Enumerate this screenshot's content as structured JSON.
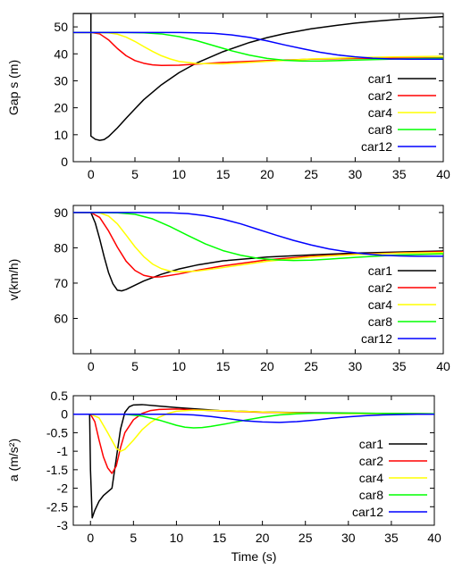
{
  "chart_data": [
    {
      "type": "line",
      "ylabel": "Gap s (m)",
      "xlabel": "",
      "xlim": [
        -2,
        40
      ],
      "ylim": [
        0,
        55
      ],
      "xticks": [
        "0",
        "5",
        "10",
        "15",
        "20",
        "25",
        "30",
        "35",
        "40"
      ],
      "yticks": [
        "0",
        "10",
        "20",
        "30",
        "40",
        "50"
      ],
      "legend_position": "bottom-right",
      "series": [
        {
          "name": "car1",
          "color": "#000000",
          "x": [
            -2,
            0,
            0,
            0.5,
            1,
            1.5,
            2,
            3,
            4,
            5,
            6,
            8,
            10,
            12,
            15,
            18,
            20,
            22,
            25,
            28,
            30,
            32,
            35,
            38,
            40
          ],
          "y": [
            55,
            55,
            9.5,
            8.3,
            7.9,
            8.2,
            9.3,
            12.5,
            16.1,
            19.6,
            23,
            28.5,
            33,
            36.6,
            40.8,
            44.2,
            46,
            47.5,
            49.3,
            50.6,
            51.4,
            52,
            52.8,
            53.4,
            53.8
          ]
        },
        {
          "name": "car2",
          "color": "#ff0000",
          "x": [
            -2,
            0,
            1,
            2,
            3,
            4,
            5,
            6,
            7,
            8,
            10,
            12,
            15,
            20,
            25,
            30,
            35,
            40
          ],
          "y": [
            47.9,
            47.9,
            47.4,
            45.2,
            42,
            39.3,
            37.5,
            36.5,
            35.9,
            35.7,
            35.8,
            36.2,
            36.8,
            37.5,
            38,
            38.3,
            38.4,
            38.5
          ]
        },
        {
          "name": "car4",
          "color": "#ffff00",
          "x": [
            -2,
            0,
            2,
            3,
            4,
            5,
            6,
            7,
            8,
            9,
            10,
            12,
            15,
            20,
            25,
            30,
            35,
            40
          ],
          "y": [
            47.9,
            47.9,
            47.8,
            47.3,
            46.2,
            44.6,
            42.7,
            40.9,
            39.3,
            38.1,
            37.2,
            36.4,
            36.3,
            37.2,
            38.1,
            38.6,
            38.9,
            39.1
          ]
        },
        {
          "name": "car8",
          "color": "#00ff00",
          "x": [
            -2,
            0,
            4,
            6,
            8,
            10,
            12,
            14,
            16,
            18,
            20,
            22,
            24,
            26,
            28,
            30,
            35,
            40
          ],
          "y": [
            47.9,
            47.9,
            47.9,
            47.8,
            47.4,
            46.4,
            44.9,
            43,
            41.1,
            39.5,
            38.3,
            37.6,
            37.3,
            37.3,
            37.5,
            37.7,
            38.1,
            38.4
          ]
        },
        {
          "name": "car12",
          "color": "#0000ff",
          "x": [
            -2,
            0,
            5,
            10,
            12,
            14,
            16,
            18,
            20,
            22,
            24,
            26,
            28,
            30,
            32,
            34,
            36,
            38,
            40
          ],
          "y": [
            47.9,
            47.9,
            47.9,
            47.9,
            47.8,
            47.6,
            47,
            46.1,
            44.8,
            43.3,
            41.9,
            40.6,
            39.6,
            38.9,
            38.4,
            38.1,
            38,
            38,
            38
          ]
        }
      ]
    },
    {
      "type": "line",
      "ylabel": "v(km/h)",
      "xlabel": "",
      "xlim": [
        -2,
        40
      ],
      "ylim": [
        50,
        92
      ],
      "xticks": [
        "0",
        "5",
        "10",
        "15",
        "20",
        "25",
        "30",
        "35",
        "40"
      ],
      "yticks": [
        "60",
        "70",
        "80",
        "90"
      ],
      "legend_position": "bottom-right",
      "series": [
        {
          "name": "car1",
          "color": "#000000",
          "x": [
            -2,
            0,
            0.5,
            1,
            1.5,
            2,
            2.5,
            3,
            3.5,
            4,
            5,
            6,
            8,
            10,
            12,
            15,
            20,
            25,
            30,
            35,
            40
          ],
          "y": [
            90,
            90,
            87,
            82.5,
            77.5,
            73,
            69.8,
            68,
            67.8,
            68.2,
            69.4,
            70.6,
            72.5,
            74,
            75.1,
            76.3,
            77.4,
            78,
            78.5,
            78.8,
            79.1
          ]
        },
        {
          "name": "car2",
          "color": "#ff0000",
          "x": [
            -2,
            0,
            1,
            2,
            3,
            4,
            5,
            6,
            7,
            8,
            10,
            12,
            15,
            20,
            25,
            30,
            35,
            40
          ],
          "y": [
            90,
            90,
            88.6,
            84.8,
            80.2,
            76.2,
            73.6,
            72.2,
            71.7,
            71.8,
            72.6,
            73.6,
            74.9,
            76.6,
            77.6,
            78.2,
            78.6,
            78.9
          ]
        },
        {
          "name": "car4",
          "color": "#ffff00",
          "x": [
            -2,
            0,
            1,
            2,
            3,
            4,
            5,
            6,
            7,
            8,
            9,
            10,
            12,
            15,
            20,
            25,
            30,
            35,
            40
          ],
          "y": [
            90,
            90,
            89.9,
            89,
            86.8,
            83.6,
            80.3,
            77.5,
            75.4,
            74.1,
            73.4,
            73.2,
            73.4,
            74.4,
            76.2,
            77.4,
            78.1,
            78.5,
            78.7
          ]
        },
        {
          "name": "car8",
          "color": "#00ff00",
          "x": [
            -2,
            0,
            3,
            5,
            7,
            9,
            11,
            13,
            15,
            17,
            19,
            21,
            23,
            25,
            27,
            30,
            35,
            40
          ],
          "y": [
            90,
            90,
            89.9,
            89.5,
            88.2,
            86,
            83.5,
            81.1,
            79.2,
            77.9,
            77,
            76.6,
            76.4,
            76.5,
            76.8,
            77.3,
            78,
            78.3
          ]
        },
        {
          "name": "car12",
          "color": "#0000ff",
          "x": [
            -2,
            0,
            5,
            9,
            11,
            13,
            15,
            17,
            19,
            21,
            23,
            25,
            27,
            29,
            31,
            33,
            35,
            37,
            40
          ],
          "y": [
            90,
            90,
            90,
            89.9,
            89.7,
            89.1,
            88.1,
            86.8,
            85.2,
            83.6,
            82.1,
            80.8,
            79.7,
            78.9,
            78.3,
            77.9,
            77.7,
            77.6,
            77.6
          ]
        }
      ]
    },
    {
      "type": "line",
      "ylabel": "a (m/s²)",
      "xlabel": "Time (s)",
      "xlim": [
        -2,
        40
      ],
      "ylim": [
        -3,
        0.5
      ],
      "xticks": [
        "0",
        "5",
        "10",
        "15",
        "20",
        "25",
        "30",
        "35",
        "40"
      ],
      "yticks": [
        "0.5",
        "0",
        "-0.5",
        "-1",
        "-1.5",
        "-2",
        "-2.5",
        "-3"
      ],
      "legend_position": "bottom-right",
      "series": [
        {
          "name": "car1",
          "color": "#000000",
          "x": [
            -2,
            -0.1,
            0,
            0.2,
            0.5,
            1,
            1.5,
            2,
            2.5,
            3,
            3.5,
            4,
            4.5,
            5,
            6,
            8,
            10,
            15,
            20,
            25,
            30,
            40
          ],
          "y": [
            0,
            0,
            -1.5,
            -2.8,
            -2.6,
            -2.35,
            -2.2,
            -2.1,
            -2,
            -1.2,
            -0.4,
            0.05,
            0.2,
            0.25,
            0.26,
            0.22,
            0.18,
            0.1,
            0.06,
            0.04,
            0.03,
            0.01
          ]
        },
        {
          "name": "car2",
          "color": "#ff0000",
          "x": [
            -2,
            0,
            0.5,
            1,
            1.5,
            2,
            2.5,
            3,
            3.5,
            4,
            5,
            6,
            7,
            8,
            10,
            12,
            15,
            20,
            25,
            30,
            40
          ],
          "y": [
            0,
            0,
            -0.2,
            -0.7,
            -1.15,
            -1.45,
            -1.6,
            -1.4,
            -0.9,
            -0.5,
            -0.15,
            0.02,
            0.1,
            0.13,
            0.14,
            0.12,
            0.09,
            0.05,
            0.03,
            0.02,
            0.01
          ]
        },
        {
          "name": "car4",
          "color": "#ffff00",
          "x": [
            -2,
            0,
            1,
            2,
            3,
            3.5,
            4,
            5,
            6,
            7,
            8,
            9,
            10,
            12,
            15,
            20,
            25,
            30,
            40
          ],
          "y": [
            0,
            0,
            -0.1,
            -0.5,
            -0.92,
            -1,
            -0.95,
            -0.7,
            -0.42,
            -0.22,
            -0.08,
            0.02,
            0.08,
            0.11,
            0.1,
            0.06,
            0.03,
            0.02,
            0.01
          ]
        },
        {
          "name": "car8",
          "color": "#00ff00",
          "x": [
            -2,
            0,
            4,
            6,
            8,
            10,
            11,
            12,
            13,
            14,
            16,
            18,
            20,
            22,
            24,
            26,
            28,
            30,
            35,
            40
          ],
          "y": [
            0,
            0,
            0,
            -0.05,
            -0.16,
            -0.3,
            -0.35,
            -0.37,
            -0.36,
            -0.33,
            -0.25,
            -0.16,
            -0.08,
            -0.02,
            0.01,
            0.03,
            0.03,
            0.03,
            0.02,
            0.01
          ]
        },
        {
          "name": "car12",
          "color": "#0000ff",
          "x": [
            -2,
            0,
            8,
            10,
            12,
            14,
            16,
            18,
            20,
            22,
            24,
            26,
            28,
            30,
            32,
            34,
            36,
            38,
            40
          ],
          "y": [
            0,
            0,
            0,
            0,
            -0.02,
            -0.06,
            -0.12,
            -0.18,
            -0.21,
            -0.22,
            -0.2,
            -0.16,
            -0.11,
            -0.07,
            -0.04,
            -0.02,
            -0.01,
            0,
            0
          ]
        }
      ]
    }
  ]
}
